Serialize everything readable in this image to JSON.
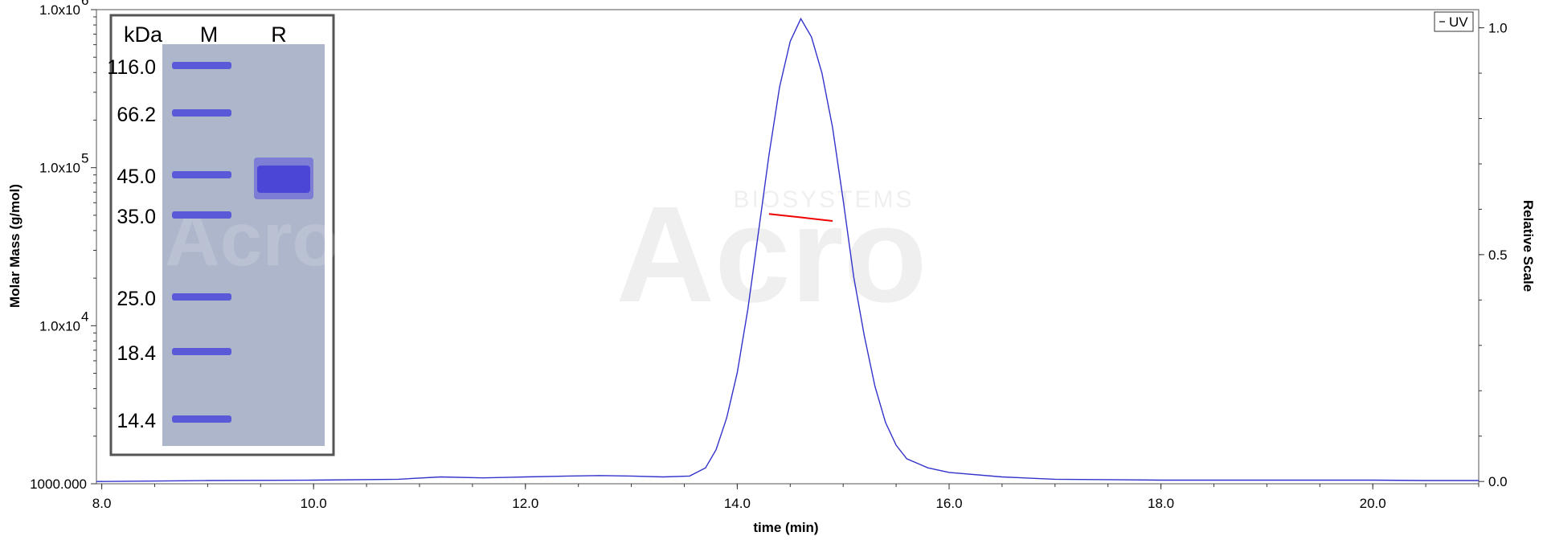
{
  "chart_data": {
    "type": "line",
    "x_axis": {
      "label": "time (min)",
      "range": [
        7.95,
        21.0
      ],
      "ticks": [
        "8.0",
        "10.0",
        "12.0",
        "14.0",
        "16.0",
        "18.0",
        "20.0"
      ]
    },
    "y_left_axis": {
      "label": "Molar Mass (g/mol)",
      "scale": "log",
      "range": [
        1000,
        1000000
      ],
      "ticks": [
        {
          "value": 1000000,
          "base": "1.0x10",
          "exp": "6"
        },
        {
          "value": 100000,
          "base": "1.0x10",
          "exp": "5"
        },
        {
          "value": 10000,
          "base": "1.0x10",
          "exp": "4"
        },
        {
          "value": 1000,
          "base": "1000.000",
          "exp": ""
        }
      ]
    },
    "y_right_axis": {
      "label": "Relative Scale",
      "range": [
        -0.005,
        1.04
      ],
      "ticks": [
        "0.0",
        "0.5",
        "1.0"
      ]
    },
    "legend": {
      "position": "top-right",
      "entries": [
        "UV"
      ]
    },
    "series": [
      {
        "name": "UV",
        "axis": "right",
        "color": "#3333cc",
        "x": [
          7.95,
          9.0,
          10.0,
          10.8,
          11.2,
          11.6,
          12.0,
          12.4,
          12.7,
          13.0,
          13.3,
          13.55,
          13.7,
          13.8,
          13.9,
          14.0,
          14.1,
          14.2,
          14.3,
          14.4,
          14.5,
          14.6,
          14.65,
          14.7,
          14.8,
          14.9,
          15.0,
          15.1,
          15.2,
          15.3,
          15.4,
          15.5,
          15.6,
          15.8,
          16.0,
          16.5,
          17.0,
          18.0,
          19.0,
          20.0,
          20.5,
          21.0
        ],
        "y": [
          0.0,
          0.002,
          0.003,
          0.005,
          0.01,
          0.008,
          0.01,
          0.012,
          0.013,
          0.012,
          0.01,
          0.012,
          0.03,
          0.07,
          0.14,
          0.24,
          0.38,
          0.55,
          0.72,
          0.87,
          0.97,
          1.02,
          1.0,
          0.98,
          0.9,
          0.78,
          0.62,
          0.45,
          0.32,
          0.21,
          0.13,
          0.08,
          0.05,
          0.03,
          0.02,
          0.01,
          0.005,
          0.003,
          0.003,
          0.003,
          0.002,
          0.002
        ]
      },
      {
        "name": "Molar Mass",
        "axis": "left",
        "color": "#ee0000",
        "x": [
          14.3,
          14.6,
          14.9
        ],
        "y": [
          51000,
          48500,
          46000
        ]
      }
    ]
  },
  "gel": {
    "header_kda": "kDa",
    "header_m": "M",
    "header_r": "R",
    "markers": [
      "116.0",
      "66.2",
      "45.0",
      "35.0",
      "25.0",
      "18.4",
      "14.4"
    ],
    "lane_color": "#aeb6cc",
    "band_color": "#5a5ad8"
  },
  "watermark": {
    "brand": "BIOSYSTEMS",
    "logo": "Acro"
  }
}
